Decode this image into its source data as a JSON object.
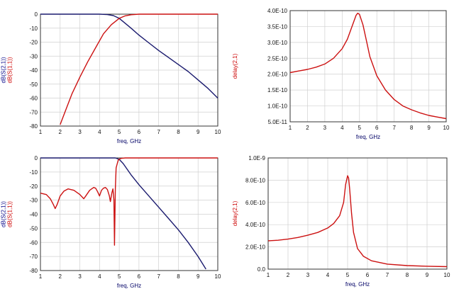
{
  "colors": {
    "blue_trace": "#1a1a6e",
    "red_trace": "#cc1111",
    "label_blue": "#000088",
    "label_red": "#cc0000",
    "axis_text": "#111111"
  },
  "chart_data": [
    {
      "type": "line",
      "panel": "top-left",
      "xlabel": "freq, GHz",
      "ylabel_parts": [
        {
          "text": "dB(S(2,1))",
          "color": "#000088"
        },
        {
          "text": "dB(S(1,1))",
          "color": "#cc0000"
        }
      ],
      "xlim": [
        1,
        10
      ],
      "ylim": [
        -80,
        0
      ],
      "xticks": [
        "1",
        "2",
        "3",
        "4",
        "5",
        "6",
        "7",
        "8",
        "9",
        "10"
      ],
      "yticks": [
        "0",
        "-10",
        "-20",
        "-30",
        "-40",
        "-50",
        "-60",
        "-70",
        "-80"
      ],
      "grid": true,
      "series": [
        {
          "color": "#1a1a6e",
          "x": [
            1,
            2,
            3,
            4,
            4.4,
            4.7,
            5.0,
            5.3,
            5.6,
            6,
            6.5,
            7,
            7.5,
            8,
            8.5,
            9,
            9.5,
            10
          ],
          "y": [
            0,
            0,
            0,
            0,
            -0.3,
            -1,
            -3,
            -6.5,
            -10,
            -15,
            -20.5,
            -26,
            -31,
            -36,
            -41,
            -47,
            -53,
            -60
          ]
        },
        {
          "color": "#cc1111",
          "x": [
            2.0,
            2.3,
            2.6,
            3.0,
            3.4,
            3.8,
            4.2,
            4.6,
            5.0,
            5.3,
            5.6,
            6,
            7,
            8,
            9,
            10
          ],
          "y": [
            -79,
            -68,
            -57,
            -45,
            -34,
            -24,
            -14,
            -7.5,
            -3,
            -1.2,
            -0.4,
            0,
            0,
            0,
            0,
            0
          ]
        }
      ]
    },
    {
      "type": "line",
      "panel": "top-right",
      "xlabel": "freq, GHz",
      "ylabel_parts": [
        {
          "text": "delay(2,1)",
          "color": "#cc0000"
        }
      ],
      "xlim": [
        1,
        10
      ],
      "ylim": [
        5e-11,
        4e-10
      ],
      "xticks": [
        "1",
        "2",
        "3",
        "4",
        "5",
        "6",
        "7",
        "8",
        "9",
        "10"
      ],
      "yticks": [
        "4.0E-10",
        "3.5E-10",
        "3.0E-10",
        "2.5E-10",
        "2.0E-10",
        "1.5E-10",
        "1.0E-10",
        "5.0E-11"
      ],
      "grid": true,
      "series": [
        {
          "color": "#cc1111",
          "x": [
            1,
            1.5,
            2,
            2.5,
            3,
            3.5,
            4,
            4.3,
            4.6,
            4.8,
            4.9,
            5.0,
            5.2,
            5.4,
            5.6,
            6,
            6.5,
            7,
            7.5,
            8,
            8.5,
            9,
            9.5,
            10
          ],
          "y": [
            2.05e-10,
            2.1e-10,
            2.15e-10,
            2.22e-10,
            2.32e-10,
            2.5e-10,
            2.8e-10,
            3.1e-10,
            3.55e-10,
            3.85e-10,
            3.92e-10,
            3.88e-10,
            3.55e-10,
            3.05e-10,
            2.55e-10,
            1.95e-10,
            1.5e-10,
            1.2e-10,
            1e-10,
            8.8e-11,
            7.8e-11,
            7e-11,
            6.5e-11,
            6e-11
          ]
        }
      ]
    },
    {
      "type": "line",
      "panel": "bottom-left",
      "xlabel": "freq, GHz",
      "ylabel_parts": [
        {
          "text": "dB(S(2,1))",
          "color": "#000088"
        },
        {
          "text": "dB(S(1,1))",
          "color": "#cc0000"
        }
      ],
      "xlim": [
        1,
        10
      ],
      "ylim": [
        -80,
        0
      ],
      "xticks": [
        "1",
        "2",
        "3",
        "4",
        "5",
        "6",
        "7",
        "8",
        "9",
        "10"
      ],
      "yticks": [
        "0",
        "-10",
        "-20",
        "-30",
        "-40",
        "-50",
        "-60",
        "-70",
        "-80"
      ],
      "grid": true,
      "series": [
        {
          "color": "#1a1a6e",
          "x": [
            1,
            2,
            3,
            4,
            4.8,
            5.0,
            5.2,
            5.4,
            5.6,
            6,
            6.5,
            7,
            7.5,
            8,
            8.5,
            9,
            9.4
          ],
          "y": [
            0,
            0,
            0,
            0,
            0,
            -1,
            -4,
            -8,
            -12,
            -19,
            -27,
            -35,
            -43,
            -51,
            -60,
            -70,
            -79
          ]
        },
        {
          "color": "#cc1111",
          "x": [
            1,
            1.3,
            1.5,
            1.65,
            1.75,
            1.85,
            2.0,
            2.2,
            2.4,
            2.7,
            3.0,
            3.2,
            3.3,
            3.5,
            3.7,
            3.8,
            3.9,
            4.0,
            4.1,
            4.2,
            4.3,
            4.4,
            4.5,
            4.55,
            4.62,
            4.68,
            4.73,
            4.76,
            4.8,
            4.84,
            4.9,
            4.95,
            5.0,
            5.05,
            5.15,
            5.3,
            5.5,
            6,
            7,
            8,
            9,
            10
          ],
          "y": [
            -25,
            -26,
            -29,
            -33,
            -36,
            -33,
            -27,
            -23.5,
            -22,
            -23,
            -26,
            -29,
            -27,
            -23,
            -21,
            -21.5,
            -24,
            -27,
            -23,
            -21.5,
            -21,
            -22.5,
            -27,
            -31,
            -25,
            -22,
            -30,
            -62,
            -22,
            -7,
            -4,
            -1.5,
            -1,
            -0.5,
            -0.2,
            0,
            0,
            0,
            0,
            0,
            0,
            0
          ]
        }
      ]
    },
    {
      "type": "line",
      "panel": "bottom-right",
      "xlabel": "freq, GHz",
      "ylabel_parts": [
        {
          "text": "delay(2,1)",
          "color": "#cc0000"
        }
      ],
      "xlim": [
        1,
        10
      ],
      "ylim": [
        0,
        1e-09
      ],
      "xticks": [
        "1",
        "2",
        "3",
        "4",
        "5",
        "6",
        "7",
        "8",
        "9",
        "10"
      ],
      "yticks": [
        "1.0E-9",
        "8.0E-10",
        "6.0E-10",
        "4.0E-10",
        "2.0E-10",
        "0.0"
      ],
      "grid": true,
      "series": [
        {
          "color": "#cc1111",
          "x": [
            1,
            1.5,
            2,
            2.5,
            3,
            3.5,
            4,
            4.3,
            4.6,
            4.8,
            4.9,
            5.0,
            5.05,
            5.1,
            5.2,
            5.3,
            5.5,
            5.8,
            6.2,
            7,
            8,
            9,
            10
          ],
          "y": [
            2.55e-10,
            2.6e-10,
            2.7e-10,
            2.85e-10,
            3.05e-10,
            3.3e-10,
            3.7e-10,
            4.1e-10,
            4.8e-10,
            6e-10,
            7.6e-10,
            8.4e-10,
            8.2e-10,
            7.3e-10,
            5e-10,
            3.3e-10,
            1.85e-10,
            1.15e-10,
            7.5e-11,
            4.5e-11,
            3.2e-11,
            2.6e-11,
            2.2e-11
          ]
        }
      ]
    }
  ]
}
